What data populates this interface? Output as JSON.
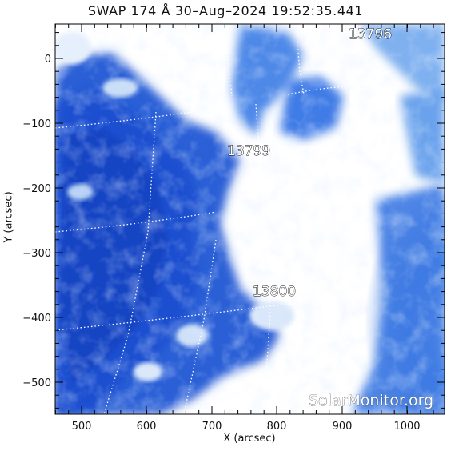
{
  "title": "SWAP 174 Å 30–Aug–2024 19:52:35.441",
  "axes": {
    "xlabel": "X (arcsec)",
    "ylabel": "Y (arcsec)",
    "x_ticks": [
      "500",
      "600",
      "700",
      "800",
      "900",
      "1000"
    ],
    "y_ticks": [
      "0",
      "−100",
      "−200",
      "−300",
      "−400",
      "−500"
    ]
  },
  "regions": [
    {
      "id": "13796",
      "label": "13796"
    },
    {
      "id": "13799",
      "label": "13799"
    },
    {
      "id": "13800",
      "label": "13800"
    }
  ],
  "watermark": "SolarMonitor.org",
  "colors": {
    "deep_blue": "#1a4fd0",
    "mid_blue": "#3d7be6",
    "light_blue": "#9cc0f2",
    "white": "#ffffff"
  }
}
